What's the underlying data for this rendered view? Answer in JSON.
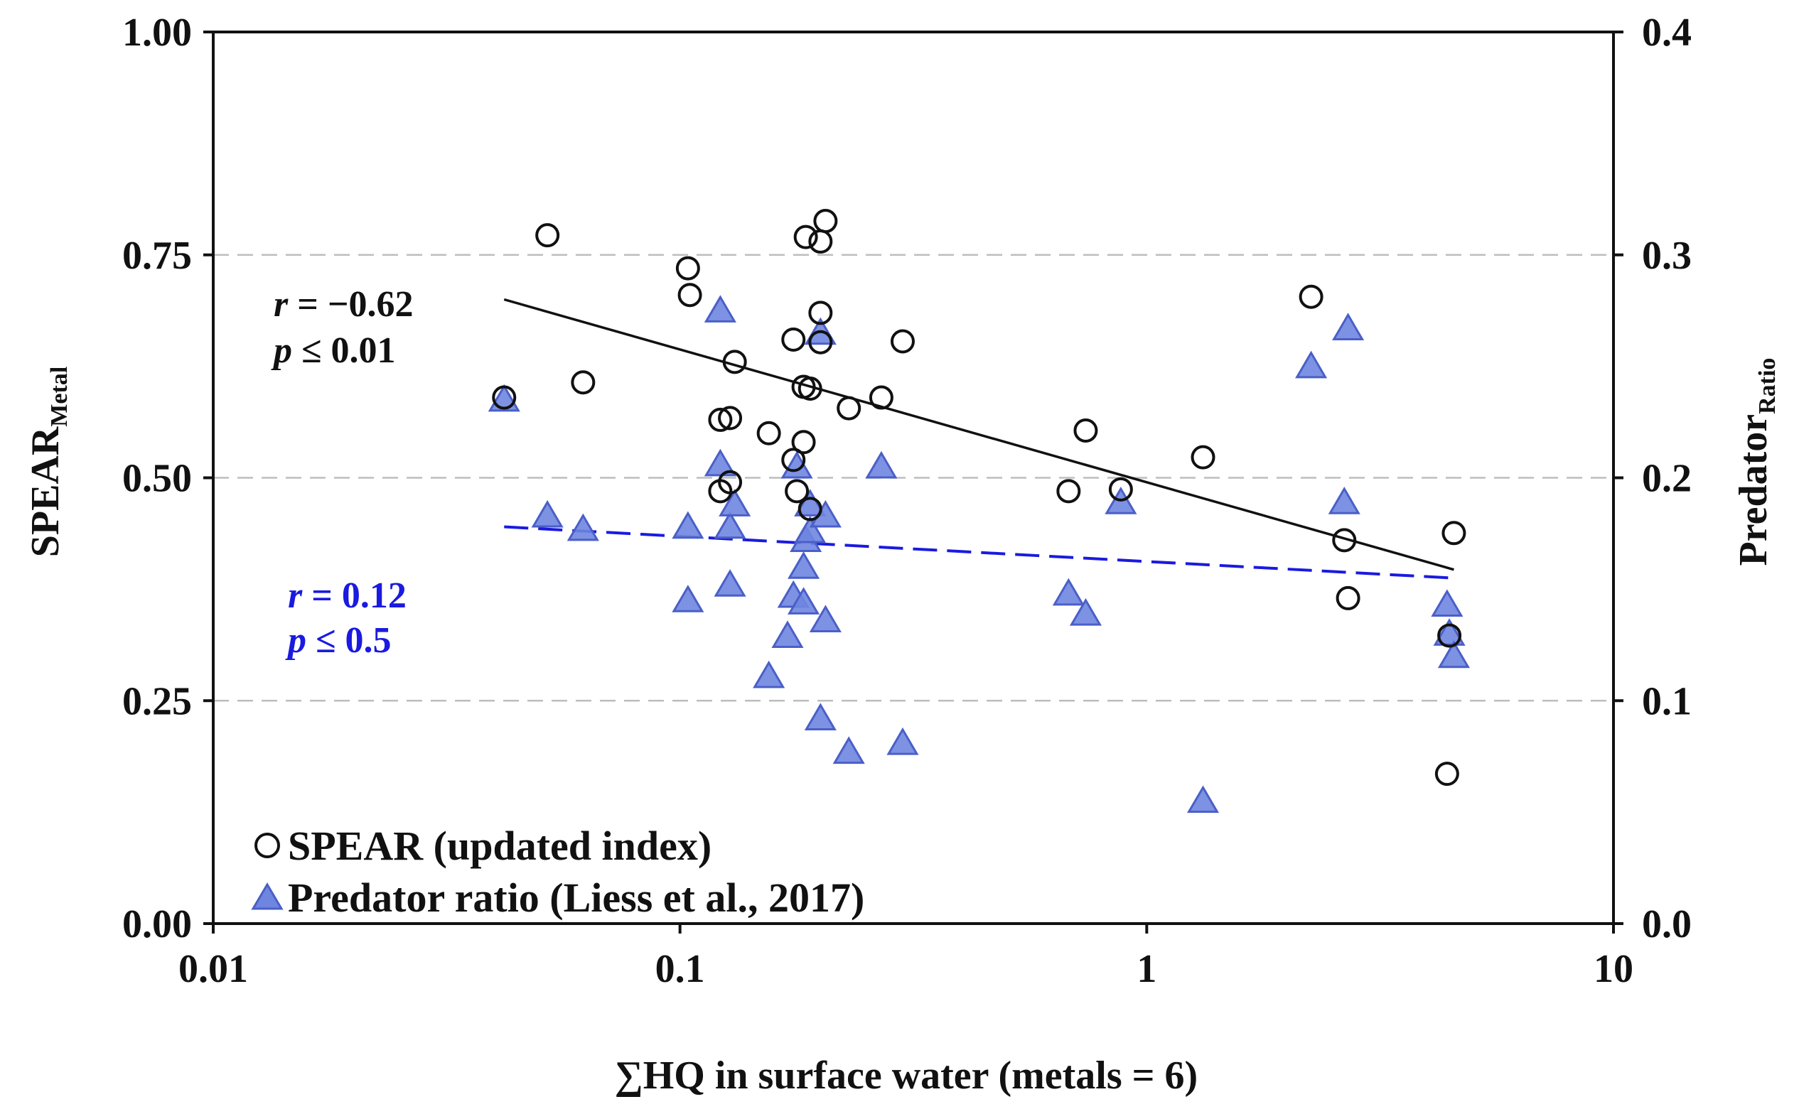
{
  "chart_data": {
    "type": "scatter",
    "title": "",
    "xlabel": "∑HQ in surface water (metals = 6)",
    "ylabel_left": {
      "main": "SPEAR",
      "sub": "Metal"
    },
    "ylabel_right": {
      "main": "Predator",
      "sub": "Ratio"
    },
    "x_scale": "log",
    "xlim": [
      0.01,
      10
    ],
    "ylim_left": [
      0,
      1
    ],
    "ylim_right": [
      0,
      0.4
    ],
    "x_ticks": [
      0.01,
      0.1,
      1,
      10
    ],
    "x_tick_labels": [
      "0.01",
      "0.1",
      "1",
      "10"
    ],
    "y_left_ticks": [
      0,
      0.25,
      0.5,
      0.75,
      1
    ],
    "y_left_tick_labels": [
      "0.00",
      "0.25",
      "0.50",
      "0.75",
      "1.00"
    ],
    "y_right_ticks": [
      0,
      0.1,
      0.2,
      0.3,
      0.4
    ],
    "y_right_tick_labels": [
      "0.0",
      "0.1",
      "0.2",
      "0.3",
      "0.4"
    ],
    "gridlines_left_y": [
      0.25,
      0.5,
      0.75
    ],
    "series": [
      {
        "name": "SPEAR (updated index)",
        "axis": "left",
        "marker": "circle",
        "color": "#111111",
        "points": [
          [
            0.042,
            0.59
          ],
          [
            0.052,
            0.772
          ],
          [
            0.062,
            0.607
          ],
          [
            0.104,
            0.735
          ],
          [
            0.105,
            0.705
          ],
          [
            0.122,
            0.565
          ],
          [
            0.122,
            0.485
          ],
          [
            0.128,
            0.567
          ],
          [
            0.128,
            0.495
          ],
          [
            0.131,
            0.63
          ],
          [
            0.155,
            0.55
          ],
          [
            0.175,
            0.655
          ],
          [
            0.175,
            0.52
          ],
          [
            0.178,
            0.485
          ],
          [
            0.184,
            0.602
          ],
          [
            0.184,
            0.54
          ],
          [
            0.186,
            0.77
          ],
          [
            0.19,
            0.6
          ],
          [
            0.19,
            0.465
          ],
          [
            0.2,
            0.765
          ],
          [
            0.2,
            0.685
          ],
          [
            0.2,
            0.652
          ],
          [
            0.205,
            0.788
          ],
          [
            0.23,
            0.578
          ],
          [
            0.27,
            0.59
          ],
          [
            0.3,
            0.653
          ],
          [
            0.68,
            0.485
          ],
          [
            0.74,
            0.553
          ],
          [
            0.88,
            0.487
          ],
          [
            1.32,
            0.523
          ],
          [
            2.25,
            0.703
          ],
          [
            2.65,
            0.43
          ],
          [
            2.7,
            0.365
          ],
          [
            4.4,
            0.168
          ],
          [
            4.45,
            0.323
          ],
          [
            4.55,
            0.438
          ]
        ]
      },
      {
        "name": "Predator ratio (Liess et al., 2017)",
        "axis": "right",
        "marker": "triangle",
        "color": "#6f86e0",
        "points": [
          [
            0.042,
            0.235
          ],
          [
            0.052,
            0.183
          ],
          [
            0.062,
            0.177
          ],
          [
            0.104,
            0.178
          ],
          [
            0.104,
            0.145
          ],
          [
            0.122,
            0.275
          ],
          [
            0.122,
            0.206
          ],
          [
            0.128,
            0.178
          ],
          [
            0.128,
            0.152
          ],
          [
            0.131,
            0.188
          ],
          [
            0.155,
            0.111
          ],
          [
            0.17,
            0.129
          ],
          [
            0.175,
            0.147
          ],
          [
            0.178,
            0.205
          ],
          [
            0.184,
            0.144
          ],
          [
            0.184,
            0.16
          ],
          [
            0.186,
            0.172
          ],
          [
            0.19,
            0.188
          ],
          [
            0.19,
            0.176
          ],
          [
            0.2,
            0.265
          ],
          [
            0.2,
            0.092
          ],
          [
            0.205,
            0.183
          ],
          [
            0.205,
            0.136
          ],
          [
            0.23,
            0.077
          ],
          [
            0.27,
            0.205
          ],
          [
            0.3,
            0.081
          ],
          [
            0.68,
            0.148
          ],
          [
            0.74,
            0.139
          ],
          [
            0.88,
            0.189
          ],
          [
            1.32,
            0.055
          ],
          [
            2.25,
            0.25
          ],
          [
            2.65,
            0.189
          ],
          [
            2.7,
            0.267
          ],
          [
            4.4,
            0.143
          ],
          [
            4.45,
            0.13
          ],
          [
            4.55,
            0.12
          ]
        ]
      }
    ],
    "trendlines": [
      {
        "name": "SPEAR fit",
        "axis": "left",
        "color": "#111111",
        "dash": "solid",
        "x": [
          0.042,
          4.55
        ],
        "y": [
          0.7,
          0.397
        ]
      },
      {
        "name": "Predator fit",
        "axis": "right",
        "color": "#1a1ae0",
        "dash": "dashed",
        "x": [
          0.042,
          4.55
        ],
        "y": [
          0.178,
          0.155
        ]
      }
    ],
    "annotations": [
      {
        "id": "spear-stats",
        "color": "#111111",
        "line1_var": "r",
        "line1_val": " = −0.62",
        "line2_var": "p",
        "line2_val": " ≤ 0.01"
      },
      {
        "id": "pred-stats",
        "color": "#1a1ae0",
        "line1_var": "r",
        "line1_val": " = 0.12",
        "line2_var": "p",
        "line2_val": " ≤ 0.5"
      }
    ],
    "legend": {
      "position": "bottom-left",
      "entries": [
        {
          "label": "SPEAR (updated index)",
          "marker": "circle"
        },
        {
          "label": "Predator ratio (Liess et al., 2017)",
          "marker": "triangle"
        }
      ]
    }
  }
}
